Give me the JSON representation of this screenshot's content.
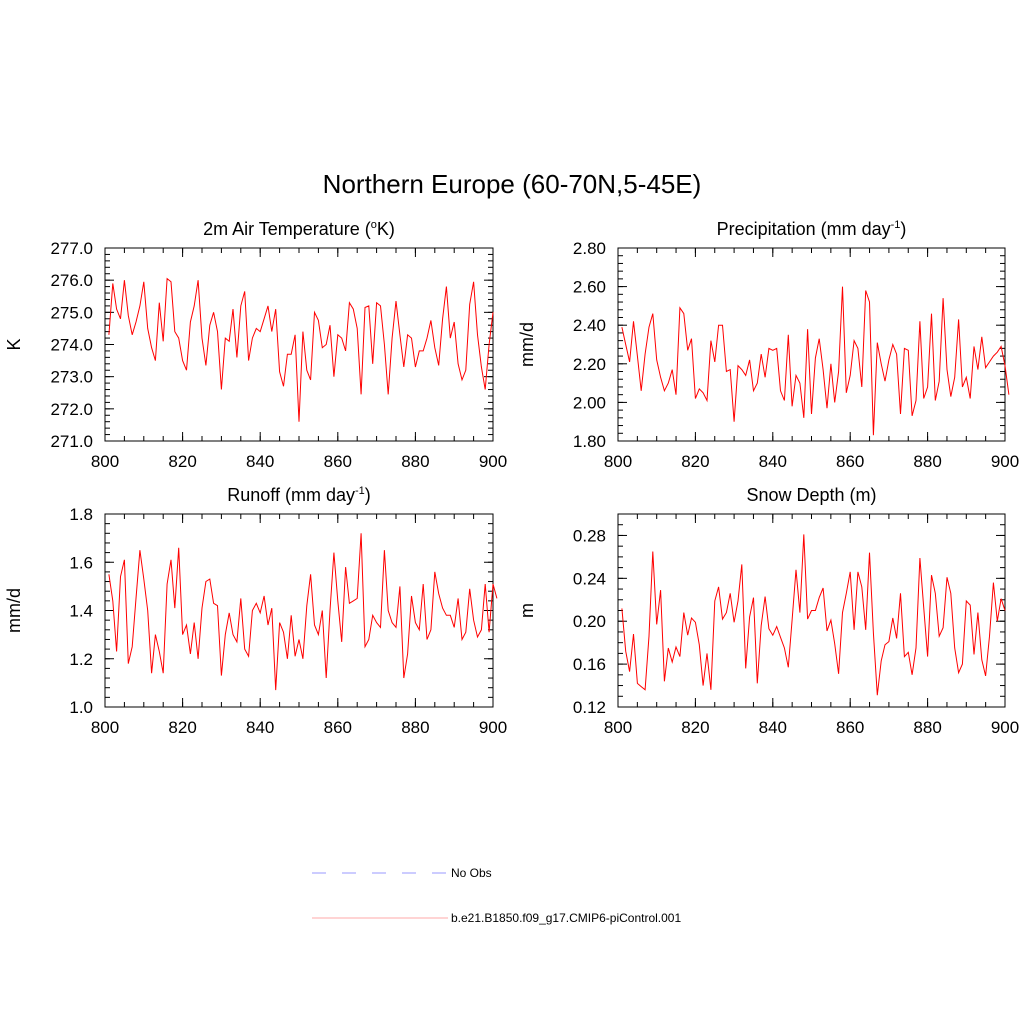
{
  "title": "Northern Europe (60-70N,5-45E)",
  "colors": {
    "series": "#ff0000",
    "no_obs": "#9999ff",
    "legend_line": "#ffaaaa"
  },
  "legend": [
    {
      "label": "No Obs",
      "style": "dashed",
      "color": "#9999ff"
    },
    {
      "label": "b.e21.B1850.f09_g17.CMIP6-piControl.001",
      "style": "solid",
      "color": "#ffaaaa"
    }
  ],
  "chart_data": [
    {
      "type": "line",
      "title_main": "2m Air Temperature (",
      "title_sup": "o",
      "title_end": "K)",
      "ylabel": "K",
      "xlim": [
        800,
        900
      ],
      "ylim": [
        271.0,
        277.0
      ],
      "xticks": [
        800,
        820,
        840,
        860,
        880,
        900
      ],
      "xtick_labels": [
        "800",
        "820",
        "840",
        "860",
        "880",
        "900"
      ],
      "yticks": [
        271.0,
        272.0,
        273.0,
        274.0,
        275.0,
        276.0,
        277.0
      ],
      "ytick_labels": [
        "271.0",
        "272.0",
        "273.0",
        "274.0",
        "275.0",
        "276.0",
        "277.0"
      ],
      "yminor_step": 0.2,
      "x_start": 801,
      "values": [
        274.3,
        275.9,
        275.1,
        274.8,
        276.0,
        274.9,
        274.3,
        274.7,
        275.2,
        275.95,
        274.5,
        273.9,
        273.5,
        275.3,
        274.1,
        276.05,
        275.95,
        274.4,
        274.2,
        273.5,
        273.2,
        274.7,
        275.2,
        276.0,
        274.2,
        273.35,
        274.6,
        275.0,
        274.4,
        272.6,
        274.2,
        274.1,
        275.1,
        273.6,
        275.2,
        275.65,
        273.5,
        274.2,
        274.5,
        274.4,
        274.8,
        275.2,
        274.4,
        275.1,
        273.15,
        272.7,
        273.7,
        273.7,
        274.3,
        271.6,
        274.4,
        273.2,
        272.9,
        275.0,
        274.75,
        273.9,
        274.0,
        274.6,
        273.0,
        274.3,
        274.2,
        273.8,
        275.3,
        275.1,
        274.5,
        272.45,
        275.15,
        275.2,
        273.4,
        275.3,
        275.2,
        274.0,
        272.45,
        274.2,
        275.35,
        274.3,
        273.3,
        274.3,
        274.2,
        273.3,
        273.8,
        273.8,
        274.2,
        274.75,
        273.9,
        273.35,
        274.8,
        275.8,
        274.2,
        274.7,
        273.4,
        272.9,
        273.2,
        275.25,
        275.95,
        274.3,
        273.3,
        272.6,
        274.0,
        275.0
      ]
    },
    {
      "type": "line",
      "title_main": "Precipitation (mm day",
      "title_sup": "-1",
      "title_end": ")",
      "ylabel": "mm/d",
      "xlim": [
        800,
        900
      ],
      "ylim": [
        1.8,
        2.8
      ],
      "xticks": [
        800,
        820,
        840,
        860,
        880,
        900
      ],
      "xtick_labels": [
        "800",
        "820",
        "840",
        "860",
        "880",
        "900"
      ],
      "yticks": [
        1.8,
        2.0,
        2.2,
        2.4,
        2.6,
        2.8
      ],
      "ytick_labels": [
        "1.80",
        "2.00",
        "2.20",
        "2.40",
        "2.60",
        "2.80"
      ],
      "yminor_step": 0.04,
      "x_start": 801,
      "values": [
        2.39,
        2.3,
        2.21,
        2.42,
        2.24,
        2.06,
        2.25,
        2.39,
        2.46,
        2.22,
        2.13,
        2.06,
        2.1,
        2.17,
        2.04,
        2.49,
        2.46,
        2.27,
        2.33,
        2.02,
        2.07,
        2.05,
        2.01,
        2.32,
        2.21,
        2.4,
        2.4,
        2.16,
        2.17,
        1.9,
        2.19,
        2.17,
        2.14,
        2.22,
        2.06,
        2.1,
        2.25,
        2.13,
        2.28,
        2.27,
        2.28,
        2.06,
        2.01,
        2.35,
        1.98,
        2.14,
        2.1,
        1.92,
        2.38,
        1.94,
        2.23,
        2.33,
        2.17,
        1.97,
        2.2,
        2.0,
        2.16,
        2.6,
        2.05,
        2.14,
        2.32,
        2.28,
        2.08,
        2.58,
        2.52,
        1.83,
        2.31,
        2.2,
        2.11,
        2.22,
        2.3,
        2.25,
        1.94,
        2.28,
        2.27,
        1.93,
        2.01,
        2.42,
        2.02,
        2.08,
        2.46,
        2.01,
        2.11,
        2.54,
        2.17,
        2.03,
        2.13,
        2.43,
        2.08,
        2.13,
        2.02,
        2.29,
        2.17,
        2.34,
        2.18,
        2.21,
        2.24,
        2.26,
        2.29,
        2.19,
        2.04
      ]
    },
    {
      "type": "line",
      "title_main": "Runoff (mm day",
      "title_sup": "-1",
      "title_end": ")",
      "ylabel": "mm/d",
      "xlim": [
        800,
        900
      ],
      "ylim": [
        1.0,
        1.8
      ],
      "xticks": [
        800,
        820,
        840,
        860,
        880,
        900
      ],
      "xtick_labels": [
        "800",
        "820",
        "840",
        "860",
        "880",
        "900"
      ],
      "yticks": [
        1.0,
        1.2,
        1.4,
        1.6,
        1.8
      ],
      "ytick_labels": [
        "1.0",
        "1.2",
        "1.4",
        "1.6",
        "1.8"
      ],
      "yminor_step": 0.04,
      "x_start": 801,
      "values": [
        1.55,
        1.44,
        1.23,
        1.54,
        1.61,
        1.18,
        1.25,
        1.45,
        1.65,
        1.53,
        1.4,
        1.14,
        1.3,
        1.23,
        1.14,
        1.51,
        1.61,
        1.41,
        1.66,
        1.3,
        1.34,
        1.22,
        1.35,
        1.2,
        1.41,
        1.52,
        1.53,
        1.43,
        1.42,
        1.13,
        1.3,
        1.39,
        1.3,
        1.27,
        1.45,
        1.24,
        1.21,
        1.4,
        1.43,
        1.39,
        1.46,
        1.34,
        1.41,
        1.07,
        1.35,
        1.31,
        1.2,
        1.38,
        1.21,
        1.28,
        1.2,
        1.42,
        1.55,
        1.34,
        1.3,
        1.4,
        1.12,
        1.4,
        1.64,
        1.44,
        1.27,
        1.58,
        1.43,
        1.44,
        1.45,
        1.72,
        1.25,
        1.28,
        1.38,
        1.35,
        1.33,
        1.65,
        1.4,
        1.35,
        1.33,
        1.5,
        1.12,
        1.22,
        1.46,
        1.35,
        1.32,
        1.51,
        1.28,
        1.32,
        1.56,
        1.47,
        1.41,
        1.38,
        1.38,
        1.33,
        1.45,
        1.28,
        1.31,
        1.49,
        1.36,
        1.29,
        1.32,
        1.51,
        1.31,
        1.51,
        1.45
      ]
    },
    {
      "type": "line",
      "title_main": "Snow Depth (m)",
      "title_sup": "",
      "title_end": "",
      "ylabel": "m",
      "xlim": [
        800,
        900
      ],
      "ylim": [
        0.12,
        0.3
      ],
      "xticks": [
        800,
        820,
        840,
        860,
        880,
        900
      ],
      "xtick_labels": [
        "800",
        "820",
        "840",
        "860",
        "880",
        "900"
      ],
      "yticks": [
        0.12,
        0.16,
        0.2,
        0.24,
        0.28
      ],
      "ytick_labels": [
        "0.12",
        "0.16",
        "0.20",
        "0.24",
        "0.28"
      ],
      "yminor_step": 0.01,
      "x_start": 801,
      "values": [
        0.212,
        0.172,
        0.153,
        0.188,
        0.142,
        0.139,
        0.136,
        0.186,
        0.265,
        0.197,
        0.229,
        0.144,
        0.175,
        0.162,
        0.176,
        0.167,
        0.208,
        0.187,
        0.203,
        0.199,
        0.178,
        0.14,
        0.17,
        0.136,
        0.219,
        0.232,
        0.202,
        0.208,
        0.226,
        0.199,
        0.219,
        0.253,
        0.156,
        0.204,
        0.222,
        0.142,
        0.196,
        0.223,
        0.193,
        0.187,
        0.195,
        0.185,
        0.175,
        0.157,
        0.201,
        0.248,
        0.208,
        0.281,
        0.202,
        0.21,
        0.21,
        0.222,
        0.231,
        0.191,
        0.201,
        0.179,
        0.151,
        0.208,
        0.226,
        0.246,
        0.192,
        0.246,
        0.232,
        0.192,
        0.264,
        0.189,
        0.131,
        0.163,
        0.178,
        0.181,
        0.203,
        0.184,
        0.226,
        0.167,
        0.171,
        0.15,
        0.175,
        0.259,
        0.213,
        0.167,
        0.243,
        0.226,
        0.186,
        0.194,
        0.241,
        0.226,
        0.175,
        0.152,
        0.16,
        0.219,
        0.215,
        0.169,
        0.208,
        0.164,
        0.149,
        0.186,
        0.236,
        0.2,
        0.221,
        0.21
      ]
    }
  ]
}
